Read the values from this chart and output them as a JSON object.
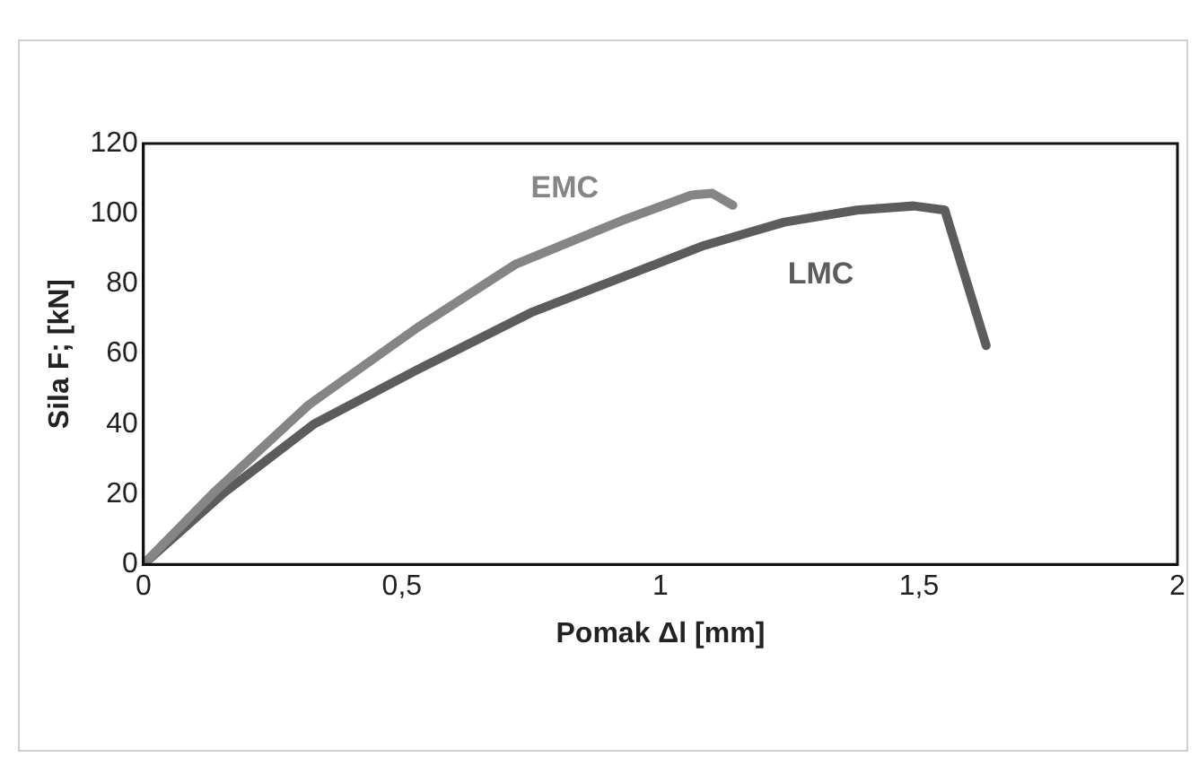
{
  "chart_data": {
    "type": "line",
    "xlabel": "Pomak Δl [mm]",
    "ylabel": "Sila F; [kN]",
    "xlim": [
      0,
      2
    ],
    "xticks": [
      {
        "value": 0,
        "label": "0"
      },
      {
        "value": 0.5,
        "label": "0,5"
      },
      {
        "value": 1,
        "label": "1"
      },
      {
        "value": 1.5,
        "label": "1,5"
      },
      {
        "value": 2,
        "label": "2"
      }
    ],
    "ylim": [
      0,
      120
    ],
    "yticks": [
      0,
      20,
      40,
      60,
      80,
      100,
      120
    ],
    "grid": false,
    "legend": false,
    "marker": "none",
    "series": [
      {
        "name": "EMC",
        "color": "#858585",
        "x": [
          0,
          0.14,
          0.32,
          0.53,
          0.72,
          0.925,
          1.06,
          1.1,
          1.14
        ],
        "values": [
          0,
          21,
          45.5,
          67.5,
          85.6,
          98,
          105.3,
          105.8,
          102.4
        ]
      },
      {
        "name": "LMC",
        "color": "#5c5c5c",
        "x": [
          0,
          0.155,
          0.33,
          0.53,
          0.75,
          1.08,
          1.24,
          1.38,
          1.49,
          1.55,
          1.63
        ],
        "values": [
          0,
          20.3,
          40,
          55.5,
          71.8,
          90.7,
          97.6,
          101,
          102.2,
          101,
          62.4
        ]
      }
    ]
  }
}
